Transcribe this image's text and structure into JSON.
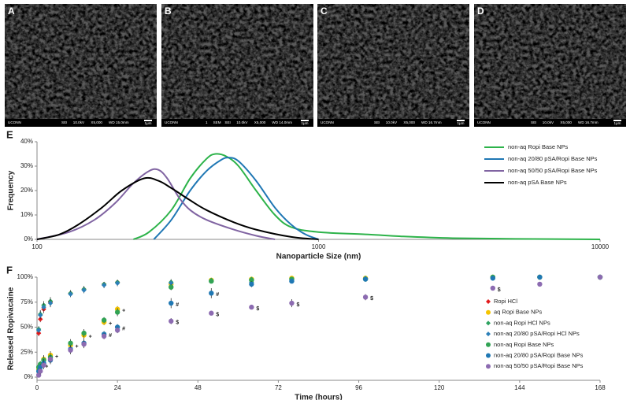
{
  "panels": {
    "sem": [
      {
        "label": "A",
        "info": [
          "UCONN",
          "SEI",
          "10.0kV",
          "X5,000",
          "WD 15.0mm"
        ],
        "scale": "1μm"
      },
      {
        "label": "B",
        "info": [
          "UCONN",
          "1",
          "SEM",
          "SEI",
          "10.0kV",
          "X5,000",
          "WD 14.0mm"
        ],
        "scale": "1μm"
      },
      {
        "label": "C",
        "info": [
          "UCONN",
          "SEI",
          "10.0kV",
          "X5,000",
          "WD 16.7mm"
        ],
        "scale": "1μm"
      },
      {
        "label": "D",
        "info": [
          "UCONN",
          "SEI",
          "10.0kV",
          "X5,000",
          "WD 16.7mm"
        ],
        "scale": "1μm"
      }
    ]
  },
  "chart_data": [
    {
      "type": "line",
      "panel_label": "E",
      "x_label": "Nanoparticle Size (nm)",
      "y_label": "Frequency",
      "xscale": "log",
      "xlim": [
        100,
        10000
      ],
      "xticks": [
        100,
        1000,
        10000
      ],
      "ylim": [
        0,
        40
      ],
      "yticks": [
        {
          "value": 0,
          "label": "0%"
        },
        {
          "value": 10,
          "label": "10%"
        },
        {
          "value": 20,
          "label": "20%"
        },
        {
          "value": 30,
          "label": "30%"
        },
        {
          "value": 40,
          "label": "40%"
        }
      ],
      "legend": "upper right",
      "series": [
        {
          "name": "non-aq Ropi Base NPs",
          "color": "#2db34a",
          "x": [
            220,
            250,
            300,
            350,
            400,
            430,
            470,
            520,
            600,
            700,
            800,
            1000,
            1500,
            2000,
            3000,
            5000,
            10000
          ],
          "values": [
            0,
            3,
            12,
            25,
            33,
            35,
            34,
            30,
            20,
            10,
            5,
            3,
            2,
            1.2,
            0.5,
            0.2,
            0
          ]
        },
        {
          "name": "non-aq 20/80 pSA/Ropi Base NPs",
          "color": "#1f77b4",
          "x": [
            260,
            300,
            350,
            400,
            450,
            480,
            520,
            600,
            700,
            800,
            900,
            1000
          ],
          "values": [
            0,
            8,
            20,
            28,
            32.5,
            33.5,
            32,
            24,
            13,
            6,
            2,
            0
          ]
        },
        {
          "name": "non-aq 50/50 pSA/Ropi Base NPs",
          "color": "#8064a2",
          "x": [
            100,
            130,
            160,
            190,
            220,
            250,
            270,
            290,
            320,
            350,
            400,
            500,
            600,
            700
          ],
          "values": [
            0,
            3,
            8,
            15,
            23,
            28,
            28.5,
            25,
            17,
            12,
            8,
            4,
            1.5,
            0
          ]
        },
        {
          "name": "non-aq pSA Base NPs",
          "color": "#000000",
          "x": [
            100,
            120,
            140,
            170,
            200,
            240,
            270,
            300,
            350,
            400,
            500,
            600,
            800,
            1000
          ],
          "values": [
            0,
            2,
            6,
            13,
            20,
            25,
            24,
            21,
            16,
            12,
            7,
            4,
            1,
            0
          ]
        }
      ]
    },
    {
      "type": "scatter",
      "panel_label": "F",
      "x_label": "Time (hours)",
      "y_label": "Released Ropivacaine",
      "xlim": [
        0,
        168
      ],
      "xticks": [
        0,
        24,
        48,
        72,
        96,
        120,
        144,
        168
      ],
      "ylim": [
        0,
        100
      ],
      "yticks": [
        {
          "value": 0,
          "label": "0%"
        },
        {
          "value": 25,
          "label": "25%"
        },
        {
          "value": 50,
          "label": "50%"
        },
        {
          "value": 75,
          "label": "75%"
        },
        {
          "value": 100,
          "label": "100%"
        }
      ],
      "legend": "right",
      "series": [
        {
          "name": "Ropi HCl",
          "color": "#e31a1c",
          "marker": "diamond",
          "x": [
            0.5,
            1,
            2,
            4,
            10,
            14,
            20,
            24
          ],
          "values": [
            44,
            58,
            68,
            75,
            84,
            88,
            93,
            95
          ],
          "errors": [
            3,
            3,
            4,
            4,
            3,
            3,
            2,
            2
          ],
          "point_labels": [
            null,
            null,
            null,
            null,
            null,
            null,
            null,
            null
          ]
        },
        {
          "name": "aq Ropi Base NPs",
          "color": "#f5c400",
          "marker": "circle",
          "x": [
            0.5,
            1,
            2,
            4,
            10,
            14,
            20,
            24,
            40,
            52,
            64,
            76,
            98,
            136,
            150,
            168
          ],
          "values": [
            8,
            12,
            18,
            22,
            32,
            42,
            55,
            68,
            93,
            97,
            98,
            99,
            99,
            100,
            100,
            100
          ],
          "errors": [
            3,
            3,
            4,
            4,
            4,
            4,
            3,
            3,
            3,
            2,
            2,
            2,
            1,
            1,
            1,
            1
          ],
          "point_labels": [
            null,
            "+",
            "+",
            "+",
            "+",
            "+",
            "+",
            "+",
            null,
            null,
            null,
            null,
            null,
            null,
            null,
            null
          ]
        },
        {
          "name": "non-aq Ropi HCl NPs",
          "color": "#2ca25f",
          "marker": "diamond",
          "x": [
            0.5,
            1,
            2,
            4,
            10,
            14,
            20,
            24,
            40,
            52,
            64,
            76,
            98,
            136,
            150,
            168
          ],
          "values": [
            48,
            63,
            72,
            76,
            84,
            88,
            93,
            95,
            95,
            97,
            98,
            98,
            99,
            100,
            100,
            100
          ],
          "errors": [
            3,
            4,
            4,
            4,
            3,
            3,
            2,
            2,
            3,
            2,
            2,
            1,
            1,
            1,
            1,
            1
          ],
          "point_labels": [
            null,
            null,
            null,
            null,
            null,
            null,
            null,
            null,
            null,
            null,
            null,
            null,
            null,
            null,
            null,
            null
          ]
        },
        {
          "name": "non-aq 20/80 pSA/Ropi HCl NPs",
          "color": "#2c7fb8",
          "marker": "diamond",
          "x": [
            0.5,
            1,
            2,
            4,
            10,
            14,
            20,
            24,
            40,
            52,
            64,
            76,
            98,
            136,
            150,
            168
          ],
          "values": [
            47,
            62,
            70,
            74,
            83,
            87,
            92,
            94,
            94,
            96,
            95,
            97,
            98,
            99,
            100,
            100
          ],
          "errors": [
            3,
            4,
            4,
            4,
            3,
            3,
            3,
            3,
            3,
            2,
            3,
            2,
            1,
            1,
            1,
            1
          ],
          "point_labels": [
            null,
            null,
            null,
            null,
            null,
            null,
            null,
            null,
            null,
            null,
            null,
            null,
            null,
            null,
            null,
            null
          ]
        },
        {
          "name": "non-aq Ropi Base NPs",
          "color": "#31a354",
          "marker": "circle",
          "x": [
            0.5,
            1,
            2,
            4,
            10,
            14,
            20,
            24,
            40,
            52,
            64,
            76,
            98,
            136,
            150,
            168
          ],
          "values": [
            10,
            13,
            17,
            20,
            34,
            44,
            57,
            65,
            90,
            96,
            97,
            98,
            98,
            100,
            100,
            100
          ],
          "errors": [
            3,
            3,
            4,
            4,
            4,
            4,
            3,
            4,
            3,
            2,
            2,
            2,
            1,
            1,
            1,
            1
          ],
          "point_labels": [
            null,
            null,
            null,
            null,
            null,
            null,
            null,
            null,
            null,
            null,
            null,
            null,
            null,
            null,
            null,
            null
          ]
        },
        {
          "name": "non-aq 20/80 pSA/Ropi Base NPs",
          "color": "#1f78b4",
          "marker": "circle",
          "x": [
            0.5,
            1,
            2,
            4,
            10,
            14,
            20,
            24,
            40,
            52,
            64,
            76,
            98,
            136,
            150,
            168
          ],
          "values": [
            6,
            10,
            14,
            17,
            28,
            34,
            43,
            50,
            74,
            84,
            93,
            96,
            98,
            99,
            100,
            100
          ],
          "errors": [
            3,
            3,
            4,
            4,
            4,
            4,
            3,
            3,
            5,
            5,
            3,
            2,
            1,
            1,
            1,
            1
          ],
          "point_labels": [
            null,
            null,
            null,
            null,
            null,
            null,
            "#",
            "#",
            "#",
            "#",
            null,
            null,
            null,
            null,
            null,
            null
          ]
        },
        {
          "name": "non-aq 50/50 pSA/Ropi Base NPs",
          "color": "#8c6bb1",
          "marker": "circle",
          "x": [
            0.5,
            1,
            2,
            4,
            10,
            14,
            20,
            24,
            40,
            52,
            64,
            76,
            98,
            136,
            150,
            168
          ],
          "values": [
            2,
            6,
            12,
            18,
            27,
            33,
            41,
            47,
            56,
            64,
            70,
            74,
            80,
            89,
            93,
            100
          ],
          "errors": [
            2,
            3,
            4,
            4,
            4,
            4,
            3,
            3,
            3,
            2,
            2,
            4,
            3,
            2,
            2,
            1
          ],
          "point_labels": [
            null,
            null,
            null,
            null,
            null,
            null,
            null,
            null,
            "$",
            "$",
            "$",
            "$",
            "$",
            "$",
            null,
            null
          ]
        }
      ]
    }
  ]
}
